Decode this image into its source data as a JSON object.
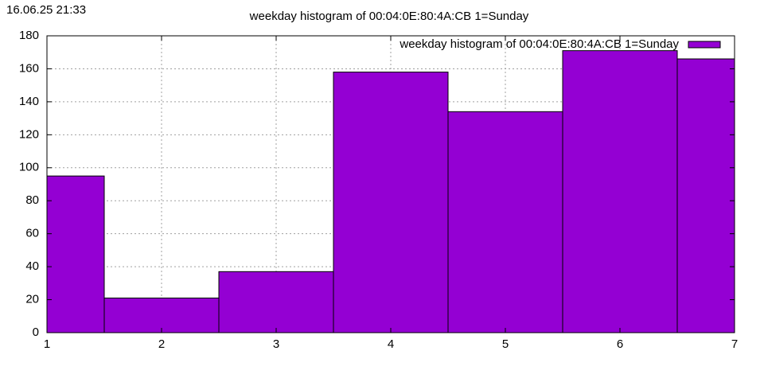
{
  "timestamp": "16.06.25 21:33",
  "chart_data": {
    "type": "bar",
    "title": "weekday histogram of 00:04:0E:80:4A:CB 1=Sunday",
    "x": [
      1,
      2,
      3,
      4,
      5,
      6,
      7
    ],
    "series": [
      {
        "name": "weekday histogram of 00:04:0E:80:4A:CB 1=Sunday",
        "color": "#9400d3",
        "values": [
          95,
          21,
          37,
          158,
          134,
          171,
          166
        ]
      }
    ],
    "xlim": [
      1,
      7
    ],
    "xticks": [
      1,
      2,
      3,
      4,
      5,
      6,
      7
    ],
    "ylim": [
      0,
      180
    ],
    "yticks": [
      0,
      20,
      40,
      60,
      80,
      100,
      120,
      140,
      160,
      180
    ],
    "grid": true,
    "legend": "top-right"
  }
}
